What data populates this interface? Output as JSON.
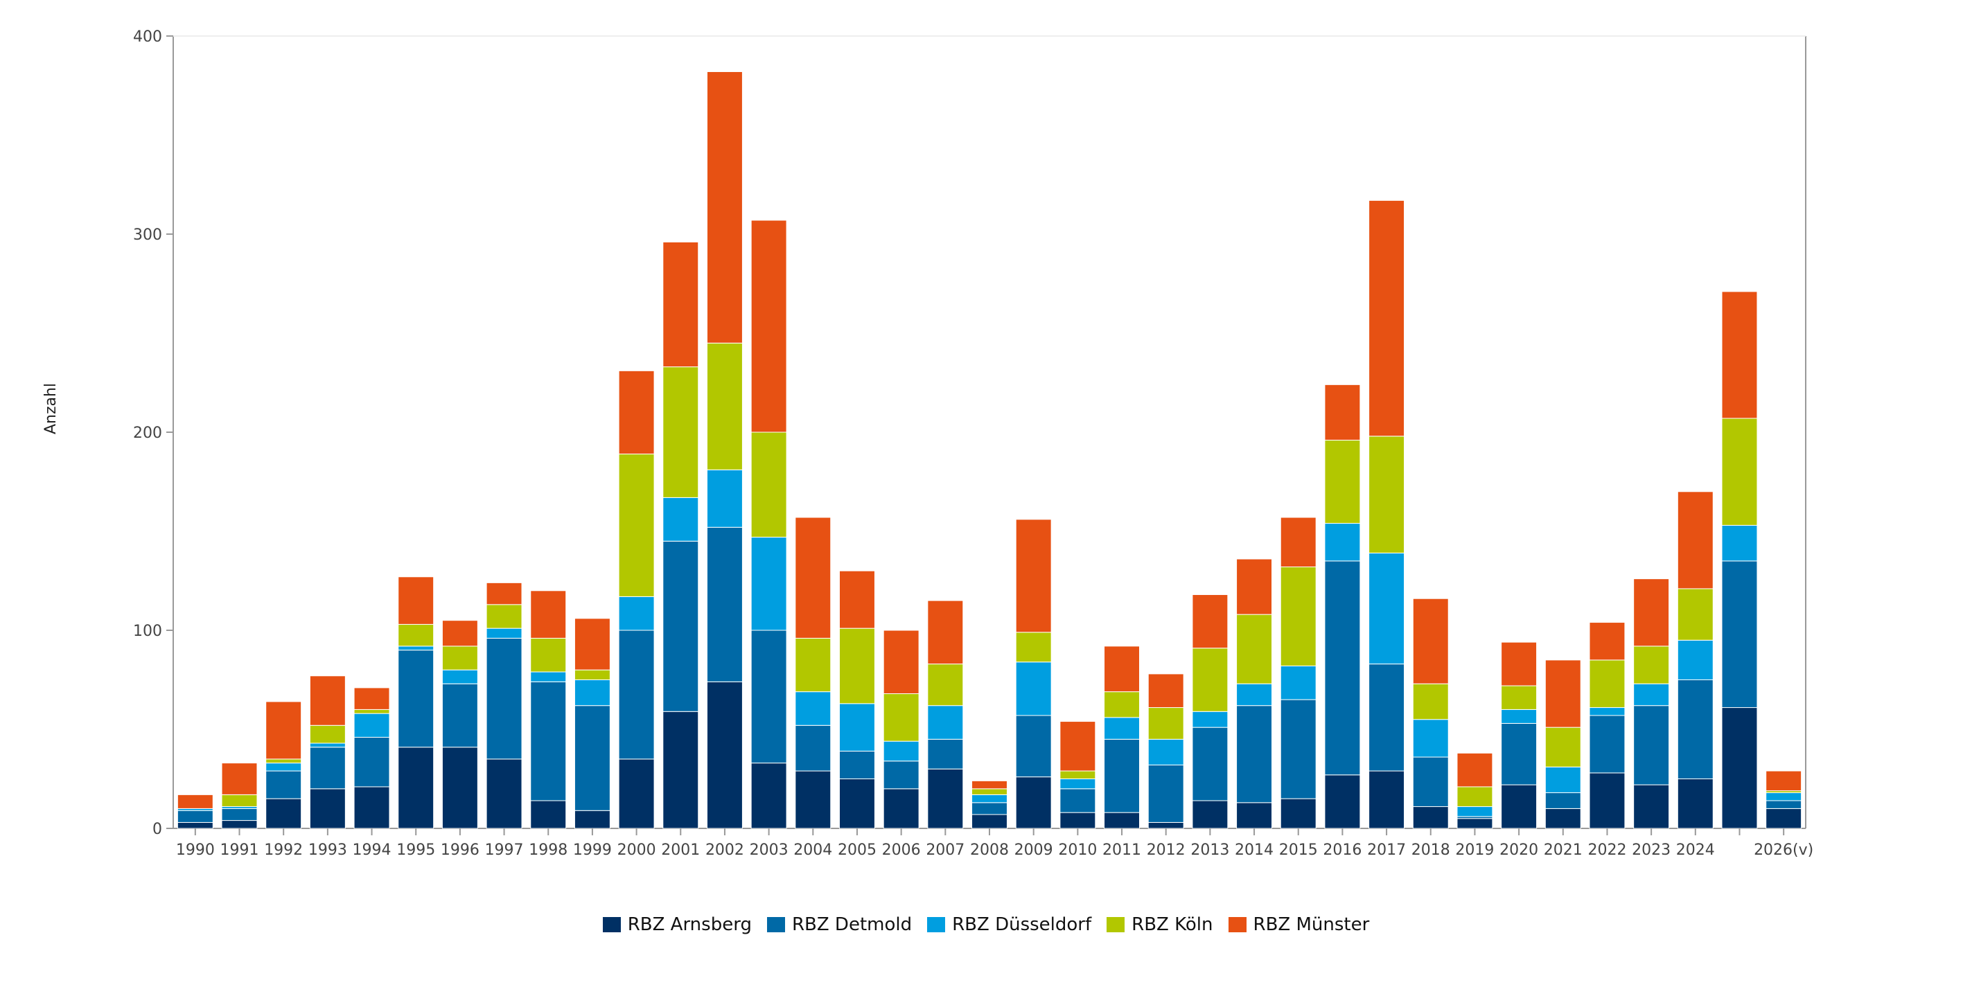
{
  "chart_data": {
    "type": "bar",
    "stacked": true,
    "title": "",
    "xlabel": "",
    "ylabel": "Anzahl",
    "ylim": [
      0,
      400
    ],
    "yticks": [
      0,
      100,
      200,
      300,
      400
    ],
    "grid": false,
    "legend_position": "bottom",
    "categories": [
      "1990",
      "1991",
      "1992",
      "1993",
      "1994",
      "1995",
      "1996",
      "1997",
      "1998",
      "1999",
      "2000",
      "2001",
      "2002",
      "2003",
      "2004",
      "2005",
      "2006",
      "2007",
      "2008",
      "2009",
      "2010",
      "2011",
      "2012",
      "2013",
      "2014",
      "2015",
      "2016",
      "2017",
      "2018",
      "2019",
      "2020",
      "2021",
      "2022",
      "2023",
      "2024",
      "",
      "2026(v)"
    ],
    "series": [
      {
        "name": "RBZ Arnsberg",
        "color": "#003064",
        "values": [
          3,
          4,
          15,
          20,
          21,
          41,
          41,
          35,
          14,
          9,
          35,
          59,
          74,
          33,
          29,
          25,
          20,
          30,
          7,
          26,
          8,
          8,
          3,
          14,
          13,
          15,
          27,
          29,
          11,
          5,
          22,
          10,
          28,
          22,
          25,
          61,
          10
        ]
      },
      {
        "name": "RBZ Detmold",
        "color": "#0069a6",
        "values": [
          6,
          6,
          14,
          21,
          25,
          49,
          32,
          61,
          60,
          53,
          65,
          86,
          78,
          67,
          23,
          14,
          14,
          15,
          6,
          31,
          12,
          37,
          29,
          37,
          49,
          50,
          108,
          54,
          25,
          1,
          31,
          8,
          29,
          40,
          50,
          74,
          4
        ]
      },
      {
        "name": "RBZ Düsseldorf",
        "color": "#009ee0",
        "values": [
          1,
          1,
          4,
          2,
          12,
          2,
          7,
          5,
          5,
          13,
          17,
          22,
          29,
          47,
          17,
          24,
          10,
          17,
          4,
          27,
          5,
          11,
          13,
          8,
          11,
          17,
          19,
          56,
          19,
          5,
          7,
          13,
          4,
          11,
          20,
          18,
          4
        ]
      },
      {
        "name": "RBZ Köln",
        "color": "#b2c700",
        "values": [
          0,
          6,
          2,
          9,
          2,
          11,
          12,
          12,
          17,
          5,
          72,
          66,
          64,
          53,
          27,
          38,
          24,
          21,
          3,
          15,
          4,
          13,
          16,
          32,
          35,
          50,
          42,
          59,
          18,
          10,
          12,
          20,
          24,
          19,
          26,
          54,
          1
        ]
      },
      {
        "name": "RBZ Münster",
        "color": "#e75113",
        "values": [
          7,
          16,
          29,
          25,
          11,
          24,
          13,
          11,
          24,
          26,
          42,
          63,
          137,
          107,
          61,
          29,
          32,
          32,
          4,
          57,
          25,
          23,
          17,
          27,
          28,
          25,
          28,
          119,
          43,
          17,
          22,
          34,
          19,
          34,
          49,
          64,
          10
        ]
      }
    ]
  }
}
